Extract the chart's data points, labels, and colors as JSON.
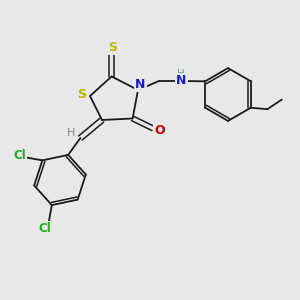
{
  "bg_color": "#e8e8e8",
  "bond_color": "#1a1a1a",
  "S_color": "#b8b800",
  "N_color": "#1a1acc",
  "O_color": "#cc0000",
  "Cl_color": "#22aa22",
  "H_color": "#44aaaa",
  "figsize": [
    3.0,
    3.0
  ],
  "dpi": 100,
  "xlim": [
    0,
    10
  ],
  "ylim": [
    0,
    10
  ],
  "lw": 1.3,
  "lw2": 1.1,
  "dbo": 0.09
}
